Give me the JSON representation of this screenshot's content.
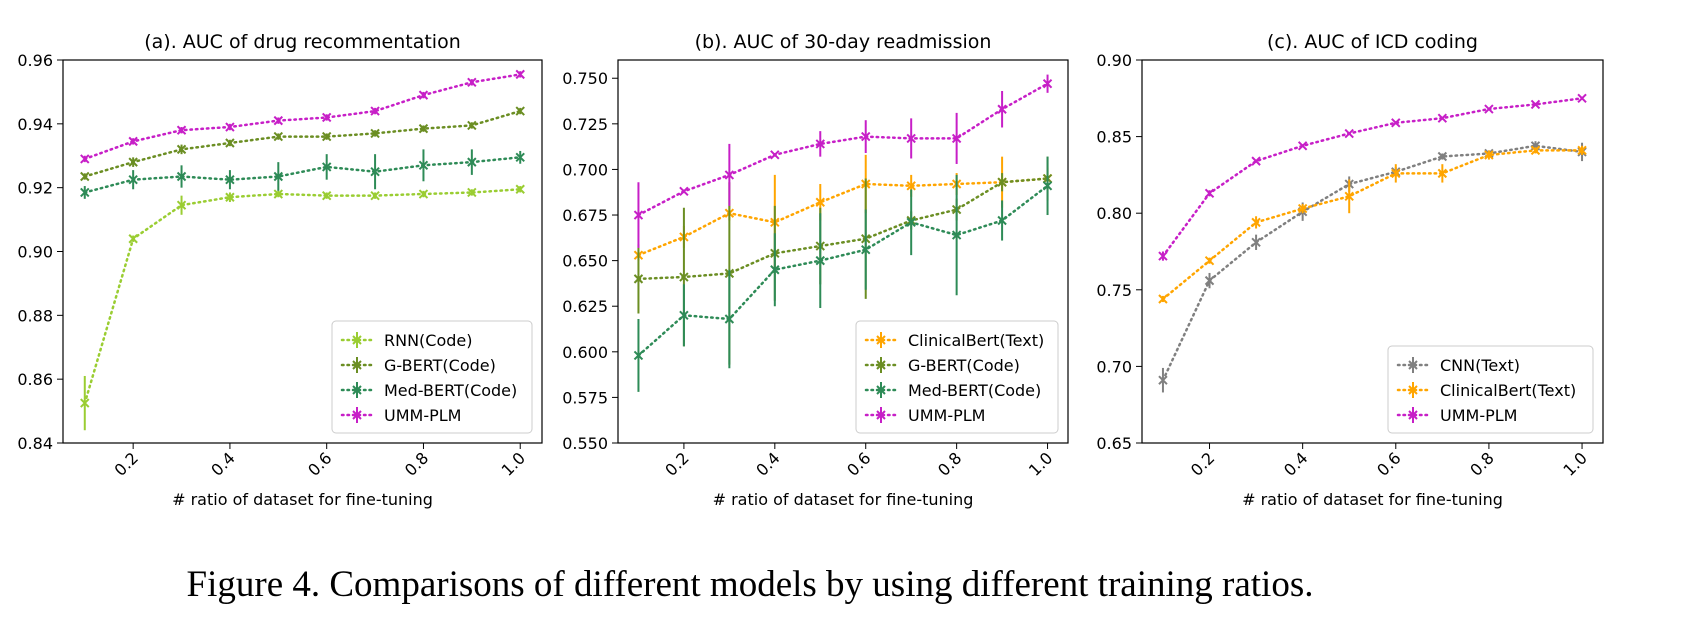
{
  "caption": "Figure 4. Comparisons of different models by using different training ratios.",
  "chart_data": [
    {
      "type": "line",
      "title": "(a). AUC of drug recommentation",
      "xlabel": "# ratio of dataset for fine-tuning",
      "ylabel": "",
      "xlim": [
        0.055,
        1.045
      ],
      "ylim": [
        0.84,
        0.96
      ],
      "xticks": [
        "0.2",
        "0.4",
        "0.6",
        "0.8",
        "1.0"
      ],
      "xtick_values": [
        0.2,
        0.4,
        0.6,
        0.8,
        1.0
      ],
      "yticks": [
        "0.84",
        "0.86",
        "0.88",
        "0.90",
        "0.92",
        "0.94",
        "0.96"
      ],
      "ytick_values": [
        0.84,
        0.86,
        0.88,
        0.9,
        0.92,
        0.94,
        0.96
      ],
      "legend_position": "lower-right",
      "x": [
        0.1,
        0.2,
        0.3,
        0.4,
        0.5,
        0.6,
        0.7,
        0.8,
        0.9,
        1.0
      ],
      "series": [
        {
          "name": "RNN(Code)",
          "color": "#9acd32",
          "values": [
            0.8525,
            0.904,
            0.9145,
            0.917,
            0.918,
            0.9175,
            0.9175,
            0.918,
            0.9185,
            0.9195
          ],
          "errors": [
            0.0085,
            0.001,
            0.003,
            0.0015,
            0.001,
            0.001,
            0.001,
            0.001,
            0.001,
            0.001
          ]
        },
        {
          "name": "G-BERT(Code)",
          "color": "#6b8e23",
          "values": [
            0.9235,
            0.928,
            0.932,
            0.934,
            0.936,
            0.936,
            0.937,
            0.9385,
            0.9395,
            0.944
          ],
          "errors": [
            0.001,
            0.0015,
            0.0015,
            0.001,
            0.001,
            0.001,
            0.001,
            0.001,
            0.001,
            0.001
          ]
        },
        {
          "name": "Med-BERT(Code)",
          "color": "#2e8b57",
          "values": [
            0.9185,
            0.9225,
            0.9235,
            0.9225,
            0.9235,
            0.9265,
            0.925,
            0.927,
            0.928,
            0.9295
          ],
          "errors": [
            0.002,
            0.003,
            0.0035,
            0.003,
            0.0045,
            0.004,
            0.0055,
            0.005,
            0.004,
            0.002
          ]
        },
        {
          "name": "UMM-PLM",
          "color": "#c71fc7",
          "values": [
            0.929,
            0.9345,
            0.938,
            0.939,
            0.941,
            0.942,
            0.944,
            0.949,
            0.953,
            0.9555
          ],
          "errors": [
            0.001,
            0.001,
            0.001,
            0.001,
            0.001,
            0.001,
            0.001,
            0.001,
            0.001,
            0.001
          ]
        }
      ]
    },
    {
      "type": "line",
      "title": "(b). AUC of 30-day readmission",
      "xlabel": "# ratio of dataset for fine-tuning",
      "ylabel": "",
      "xlim": [
        0.055,
        1.045
      ],
      "ylim": [
        0.55,
        0.76
      ],
      "xticks": [
        "0.2",
        "0.4",
        "0.6",
        "0.8",
        "1.0"
      ],
      "xtick_values": [
        0.2,
        0.4,
        0.6,
        0.8,
        1.0
      ],
      "yticks": [
        "0.550",
        "0.575",
        "0.600",
        "0.625",
        "0.650",
        "0.675",
        "0.700",
        "0.725",
        "0.750"
      ],
      "ytick_values": [
        0.55,
        0.575,
        0.6,
        0.625,
        0.65,
        0.675,
        0.7,
        0.725,
        0.75
      ],
      "legend_position": "lower-right",
      "x": [
        0.1,
        0.2,
        0.3,
        0.4,
        0.5,
        0.6,
        0.7,
        0.8,
        0.9,
        1.0
      ],
      "series": [
        {
          "name": "ClinicalBert(Text)",
          "color": "#ffa500",
          "values": [
            0.653,
            0.663,
            0.676,
            0.671,
            0.682,
            0.692,
            0.691,
            0.692,
            0.693,
            0.695
          ],
          "errors": [
            0.003,
            0.006,
            0.004,
            0.026,
            0.01,
            0.016,
            0.006,
            0.006,
            0.014,
            0.006
          ]
        },
        {
          "name": "G-BERT(Code)",
          "color": "#6b8e23",
          "values": [
            0.64,
            0.641,
            0.643,
            0.654,
            0.658,
            0.662,
            0.672,
            0.678,
            0.693,
            0.695
          ],
          "errors": [
            0.019,
            0.038,
            0.05,
            0.026,
            0.021,
            0.033,
            0.005,
            0.006,
            0.005,
            0.012
          ]
        },
        {
          "name": "Med-BERT(Code)",
          "color": "#2e8b57",
          "values": [
            0.598,
            0.62,
            0.618,
            0.645,
            0.65,
            0.656,
            0.671,
            0.664,
            0.672,
            0.691
          ],
          "errors": [
            0.02,
            0.017,
            0.027,
            0.02,
            0.026,
            0.022,
            0.018,
            0.033,
            0.011,
            0.016
          ]
        },
        {
          "name": "UMM-PLM",
          "color": "#c71fc7",
          "values": [
            0.675,
            0.688,
            0.697,
            0.708,
            0.714,
            0.718,
            0.717,
            0.717,
            0.733,
            0.747
          ],
          "errors": [
            0.018,
            0.001,
            0.017,
            0.001,
            0.007,
            0.009,
            0.011,
            0.014,
            0.01,
            0.005
          ]
        }
      ]
    },
    {
      "type": "line",
      "title": "(c). AUC of ICD coding",
      "xlabel": "# ratio of dataset for fine-tuning",
      "ylabel": "",
      "xlim": [
        0.055,
        1.045
      ],
      "ylim": [
        0.65,
        0.9
      ],
      "xticks": [
        "0.2",
        "0.4",
        "0.6",
        "0.8",
        "1.0"
      ],
      "xtick_values": [
        0.2,
        0.4,
        0.6,
        0.8,
        1.0
      ],
      "yticks": [
        "0.65",
        "0.70",
        "0.75",
        "0.80",
        "0.85",
        "0.90"
      ],
      "ytick_values": [
        0.65,
        0.7,
        0.75,
        0.8,
        0.85,
        0.9
      ],
      "legend_position": "lower-right",
      "x": [
        0.1,
        0.2,
        0.3,
        0.4,
        0.5,
        0.6,
        0.7,
        0.8,
        0.9,
        1.0
      ],
      "series": [
        {
          "name": "CNN(Text)",
          "color": "#808080",
          "values": [
            0.691,
            0.756,
            0.781,
            0.801,
            0.819,
            0.827,
            0.837,
            0.839,
            0.844,
            0.84
          ],
          "errors": [
            0.008,
            0.005,
            0.005,
            0.006,
            0.005,
            0.003,
            0.002,
            0.002,
            0.003,
            0.006
          ]
        },
        {
          "name": "ClinicalBert(Text)",
          "color": "#ffa500",
          "values": [
            0.744,
            0.769,
            0.794,
            0.803,
            0.811,
            0.826,
            0.826,
            0.838,
            0.841,
            0.841
          ],
          "errors": [
            0.002,
            0.002,
            0.004,
            0.003,
            0.011,
            0.006,
            0.006,
            0.003,
            0.002,
            0.003
          ]
        },
        {
          "name": "UMM-PLM",
          "color": "#c71fc7",
          "values": [
            0.772,
            0.813,
            0.834,
            0.844,
            0.852,
            0.859,
            0.862,
            0.868,
            0.871,
            0.875
          ],
          "errors": [
            0.003,
            0.002,
            0.001,
            0.001,
            0.001,
            0.001,
            0.001,
            0.001,
            0.001,
            0.001
          ]
        }
      ]
    }
  ]
}
